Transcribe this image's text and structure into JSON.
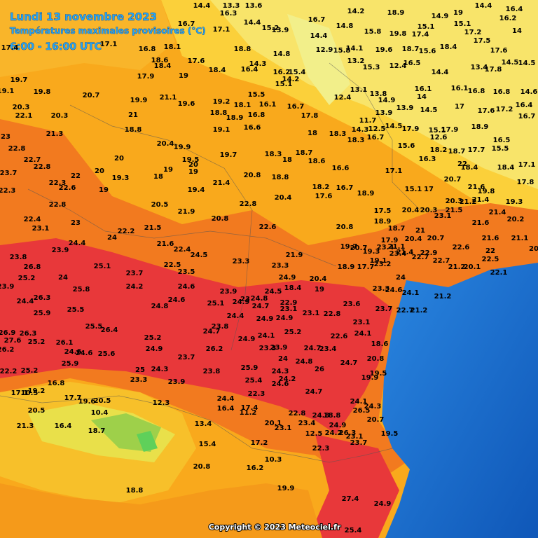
{
  "header": {
    "title": "Lundi 13 novembre 2023",
    "subtitle": "Températures maximales provisoires (°C)",
    "period": "6:00 - 16:00 UTC"
  },
  "stations": {
    "values": [
      14.4,
      13.3,
      13.6,
      16.3,
      16.7,
      17.1,
      14.4,
      15.2,
      13.9,
      16.7,
      14.2,
      18.9,
      14.9,
      19,
      14.4,
      16.4,
      14.4,
      14.8,
      15.8,
      19.8,
      15.1,
      17.4,
      15.1,
      17.2,
      14,
      16.2,
      17.1,
      16.8,
      18.1,
      18.8,
      14.3,
      14.8,
      12.9,
      15.8,
      14.1,
      19.6,
      18.7,
      15.6,
      18.4,
      17.5,
      17.6,
      17.4,
      19.7,
      18.6,
      18.4,
      17.6,
      18.4,
      16.4,
      16.2,
      15.4,
      13.2,
      15.3,
      12.4,
      16.5,
      14.4,
      13.4,
      17.8,
      14.5,
      14.5,
      19.1,
      19.8,
      20.7,
      17.9,
      19,
      15.1,
      14.2,
      15.5,
      12.4,
      13.1,
      13.8,
      14.9,
      16.1,
      14,
      16.1,
      16.8,
      16.8,
      14.6,
      20.3,
      22.1,
      20.3,
      19.9,
      21.1,
      19.6,
      19.2,
      18.1,
      16.1,
      18.8,
      18.9,
      16.8,
      16.7,
      13.9,
      13.9,
      14.5,
      17,
      17.6,
      17.2,
      16.4,
      21,
      21.3,
      23,
      18.8,
      19.1,
      16.6,
      17.8,
      11.7,
      14.3,
      12.5,
      14.5,
      17.9,
      15.1,
      17.9,
      18.9,
      16.7,
      22.8,
      22.7,
      22.8,
      20,
      20.4,
      19.9,
      19.5,
      20,
      19,
      19,
      18,
      19.3,
      20,
      19,
      22,
      22.3,
      22.6,
      23.7,
      22.3,
      19.7,
      18,
      18.3,
      18.3,
      16.7,
      15.6,
      18.2,
      12.6,
      18.7,
      17.7,
      16.5,
      15.5,
      18.3,
      18,
      18.7,
      18.6,
      16.6,
      17.1,
      16.3,
      22,
      18.4,
      18.4,
      17.1,
      20.8,
      18.8,
      21.4,
      19.4,
      18.2,
      17.6,
      16.7,
      18.9,
      15.1,
      17,
      20.7,
      21.6,
      19.8,
      17.8,
      20.3,
      21.2,
      21.4,
      19.3,
      22.8,
      20.5,
      21.9,
      22.8,
      20.4,
      17.5,
      20.4,
      20.3,
      23.1,
      21.5,
      21.4,
      22.4,
      23.1,
      23,
      20.8,
      22.6,
      20.8,
      18.9,
      18.7,
      21,
      21.6,
      20.2,
      22.2,
      21.5,
      24,
      24.4,
      21.6,
      22.4,
      24.5,
      17.9,
      20.4,
      20.7,
      22.6,
      21.6,
      21.1,
      20,
      23.8,
      23.9,
      21.9,
      19.7,
      20.7,
      19.3,
      23.4,
      21.1,
      23.4,
      19.1,
      23.2,
      21.4,
      22.7,
      22.9,
      22.7,
      21.2,
      20.1,
      22,
      22.5,
      22.1,
      26.8,
      25.1,
      23.7,
      22.5,
      23.5,
      23.3,
      23.3,
      18.9,
      17.7,
      25.2,
      24,
      24.9,
      24,
      20.4,
      23.9,
      25.8,
      24.2,
      24.6,
      24.5,
      18.4,
      19,
      23.3,
      24.6,
      24.1,
      21.2,
      23.9,
      23,
      24.8,
      24.4,
      26.3,
      24.8,
      24.6,
      25.1,
      24.9,
      24.7,
      22.9,
      23.1,
      23.6,
      23.7,
      22.7,
      21.2,
      25.9,
      25.5,
      24.4,
      24.9,
      24.9,
      23.1,
      22.8,
      23.1,
      26.9,
      26.3,
      23.8,
      25.5,
      26.4,
      25.2,
      24.7,
      24.1,
      25.2,
      24.1,
      27.6,
      25.2,
      26.1,
      26.2,
      24.6,
      24.6,
      25.6,
      24.9,
      26.2,
      24.9,
      23.3,
      23.9,
      24.7,
      23.4,
      22.6,
      18.6,
      23.7,
      24,
      24.8,
      26,
      24.7,
      20.8,
      25.9,
      25,
      24.3,
      23.8,
      25.9,
      24.3,
      22.2,
      25.2,
      19.5,
      19.9,
      23.3,
      23.9,
      25.4,
      24.2,
      24.6,
      16.8,
      19.2,
      17.1,
      10.5,
      22.3,
      24.7,
      17.7,
      19.6,
      20.5,
      12.3,
      24.4,
      16.4,
      17.4,
      11.2,
      24.1,
      24.3,
      26.5,
      20.5,
      10.4,
      22.8,
      24.8,
      18.8,
      20.7,
      21.3,
      16.4,
      13.4,
      20.1,
      23.1,
      23.4,
      24.9,
      18.7,
      12.5,
      24.2,
      26.3,
      23.1,
      23.7,
      19.5,
      15.4,
      17.2,
      22.3,
      10.3,
      20.8,
      16.2,
      19.9,
      18.8,
      27.4,
      24.9,
      25.4
    ]
  },
  "copyright": "Copyright © 2023 Meteociel.fr"
}
